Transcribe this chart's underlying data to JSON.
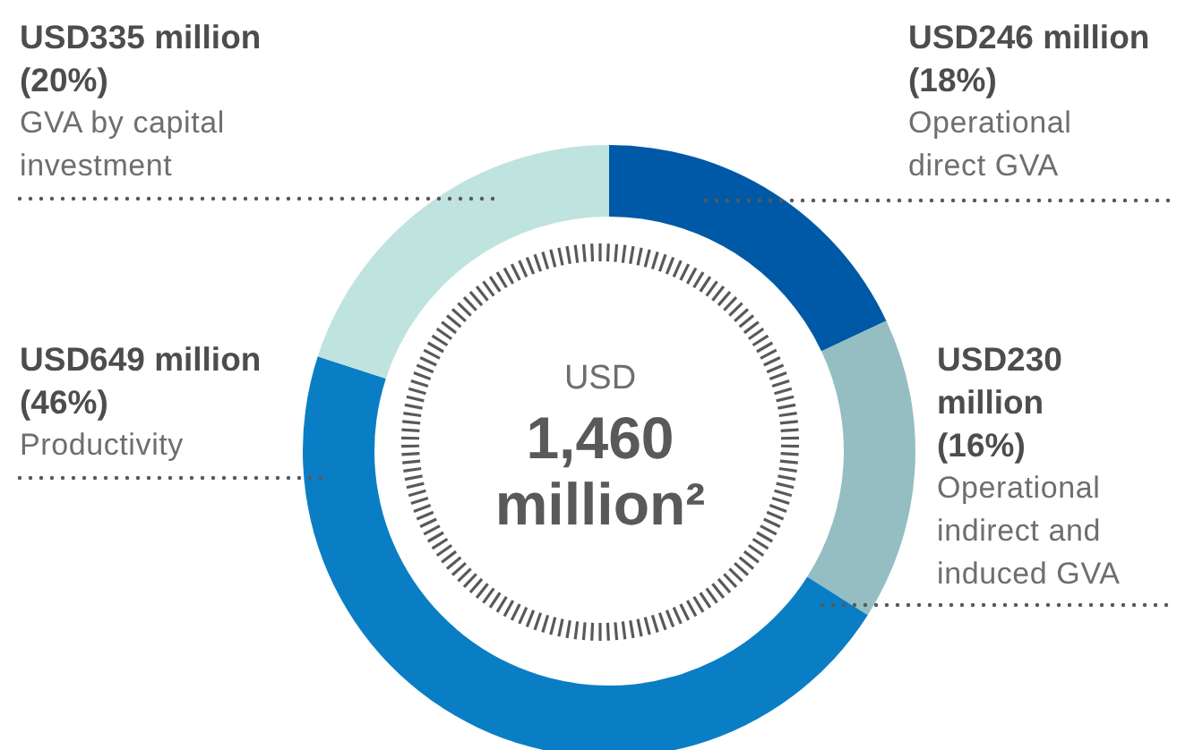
{
  "chart_data": {
    "type": "donut",
    "categories": [
      "Operational direct GVA",
      "Operational indirect and induced GVA",
      "Productivity",
      "GVA by capital investment"
    ],
    "values": [
      18,
      16,
      46,
      20
    ],
    "colors": [
      "#0059a6",
      "#95bec3",
      "#0a7ec4",
      "#bfe3df"
    ],
    "value_labels": [
      "USD246 million (18%)",
      "USD230 million (16%)",
      "USD649 million (46%)",
      "USD335 million (20%)"
    ],
    "annotations": [
      "USD",
      "1,460",
      "million²"
    ]
  }
}
